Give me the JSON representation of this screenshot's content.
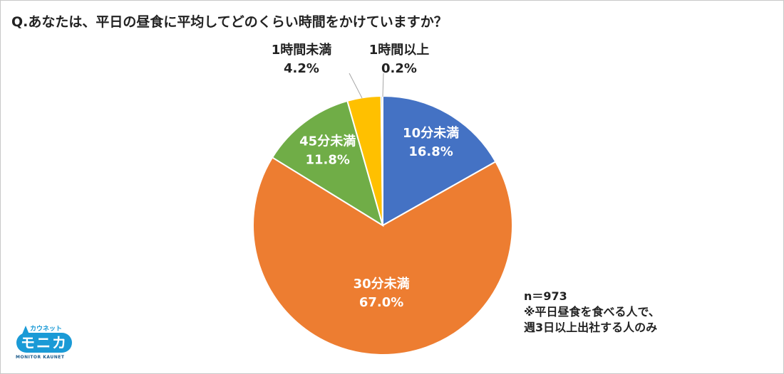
{
  "chart_data": {
    "type": "pie",
    "title": "Q.あなたは、平日の昼食に平均してどのくらい時間をかけていますか？",
    "slices": [
      {
        "label": "10分未満",
        "value": 16.8,
        "value_label": "16.8%",
        "color": "#4472c4",
        "inside": true
      },
      {
        "label": "30分未満",
        "value": 67.0,
        "value_label": "67.0%",
        "color": "#ed7d31",
        "inside": true
      },
      {
        "label": "45分未満",
        "value": 11.8,
        "value_label": "11.8%",
        "color": "#70ad47",
        "inside": true
      },
      {
        "label": "1時間未満",
        "value": 4.2,
        "value_label": "4.2%",
        "color": "#ffc000",
        "inside": false
      },
      {
        "label": "1時間以上",
        "value": 0.2,
        "value_label": "0.2%",
        "color": "#5b9bd5",
        "inside": false
      }
    ],
    "start": "top",
    "direction": "clockwise"
  },
  "notes": {
    "n": "n＝973",
    "line1": "※平日昼食を食べる人で、",
    "line2": "週3日以上出社する人のみ"
  },
  "logo": {
    "kana": "カウネット",
    "main": "モニカ",
    "sub": "MONITOR KAUNET"
  }
}
